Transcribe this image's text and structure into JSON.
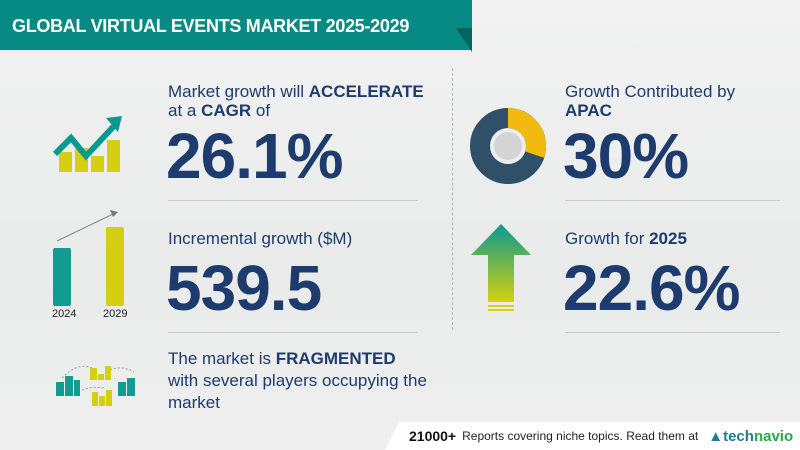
{
  "header": {
    "title": "GLOBAL VIRTUAL EVENTS MARKET 2025-2029"
  },
  "cagr": {
    "label_pre": "Market growth will ",
    "label_bold": "ACCELERATE",
    "label_line2_pre": "at a ",
    "label_line2_bold": "CAGR",
    "label_line2_post": " of",
    "value": "26.1%",
    "icon": "rising-trend-chart-icon"
  },
  "incremental": {
    "label": "Incremental growth ($M)",
    "value": "539.5",
    "years": [
      "2024",
      "2029"
    ],
    "icon": "bar-comparison-icon"
  },
  "market": {
    "line1_pre": "The market is ",
    "line1_bold": "FRAGMENTED",
    "line2": "with several players occupying the",
    "line3": "market",
    "icon": "buildings-network-icon"
  },
  "region": {
    "label": "Growth Contributed by",
    "region": "APAC",
    "value": "30%",
    "share": 0.3,
    "icon": "donut-chart-icon"
  },
  "yoy": {
    "label_pre": "Growth for ",
    "label_bold": "2025",
    "value": "22.6%",
    "icon": "up-arrow-icon"
  },
  "footer": {
    "count": "21000+",
    "text": "Reports covering niche topics. Read them at",
    "brand_a": "tech",
    "brand_b": "navio"
  },
  "colors": {
    "teal": "#078a83",
    "navy": "#1d3b6c",
    "yellow": "#d4cf10",
    "donut_dark": "#2f5068",
    "donut_accent": "#f2b90f"
  }
}
